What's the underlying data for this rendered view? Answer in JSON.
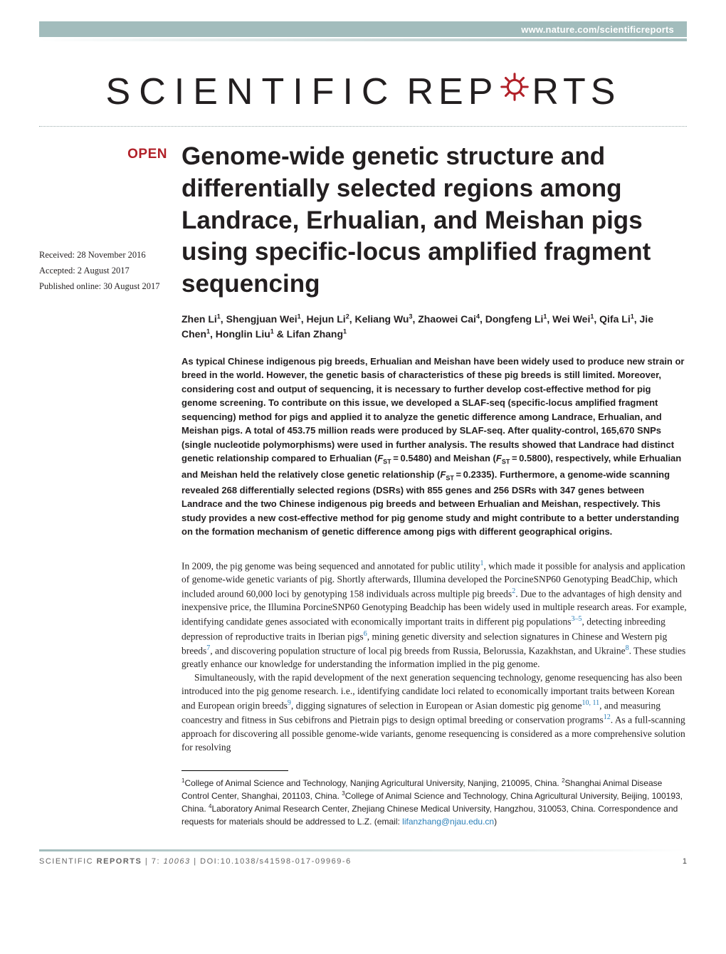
{
  "header": {
    "url": "www.nature.com/scientificreports",
    "journal_name_1": "SCIENTIFIC",
    "journal_name_2_pre": "REP",
    "journal_name_2_post": "RTS",
    "gear_color": "#b12028"
  },
  "badge": {
    "open": "OPEN"
  },
  "dates": {
    "received": "Received: 28 November 2016",
    "accepted": "Accepted: 2 August 2017",
    "published": "Published online: 30 August 2017"
  },
  "article": {
    "title": "Genome-wide genetic structure and differentially selected regions among Landrace, Erhualian, and Meishan pigs using specific-locus amplified fragment sequencing",
    "authors_html": "Zhen Li<sup>1</sup>, Shengjuan Wei<sup>1</sup>, Hejun Li<sup>2</sup>, Keliang Wu<sup>3</sup>, Zhaowei Cai<sup>4</sup>, Dongfeng Li<sup>1</sup>, Wei Wei<sup>1</sup>, Qifa Li<sup>1</sup>, Jie Chen<sup>1</sup>, Honglin Liu<sup>1</sup> & Lifan Zhang<sup>1</sup>",
    "abstract_html": "As typical Chinese indigenous pig breeds, Erhualian and Meishan have been widely used to produce new strain or breed in the world. However, the genetic basis of characteristics of these pig breeds is still limited. Moreover, considering cost and output of sequencing, it is necessary to further develop cost-effective method for pig genome screening. To contribute on this issue, we developed a SLAF-seq (specific-locus amplified fragment sequencing) method for pigs and applied it to analyze the genetic difference among Landrace, Erhualian, and Meishan pigs. A total of 453.75 million reads were produced by SLAF-seq. After quality-control, 165,670 SNPs (single nucleotide polymorphisms) were used in further analysis. The results showed that Landrace had distinct genetic relationship compared to Erhualian (<span class=\"fst\">F</span><sub>ST</sub> = 0.5480) and Meishan (<span class=\"fst\">F</span><sub>ST</sub> = 0.5800), respectively, while Erhualian and Meishan held the relatively close genetic relationship (<span class=\"fst\">F</span><sub>ST</sub> = 0.2335). Furthermore, a genome-wide scanning revealed 268 differentially selected regions (DSRs) with 855 genes and 256 DSRs with 347 genes between Landrace and the two Chinese indigenous pig breeds and between Erhualian and Meishan, respectively. This study provides a new cost-effective method for pig genome study and might contribute to a better understanding on the formation mechanism of genetic difference among pigs with different geographical origins."
  },
  "body": {
    "p1_html": "In 2009, the pig genome was being sequenced and annotated for public utility<span class=\"cite\">1</span>, which made it possible for analysis and application of genome-wide genetic variants of pig. Shortly afterwards, Illumina developed the PorcineSNP60 Genotyping BeadChip, which included around 60,000 loci by genotyping 158 individuals across multiple pig breeds<span class=\"cite\">2</span>. Due to the advantages of high density and inexpensive price, the Illumina PorcineSNP60 Genotyping Beadchip has been widely used in multiple research areas. For example, identifying candidate genes associated with economically important traits in different pig populations<span class=\"cite\">3–5</span>, detecting inbreeding depression of reproductive traits in Iberian pigs<span class=\"cite\">6</span>, mining genetic diversity and selection signatures in Chinese and Western pig breeds<span class=\"cite\">7</span>, and discovering population structure of local pig breeds from Russia, Belorussia, Kazakhstan, and Ukraine<span class=\"cite\">8</span>. These studies greatly enhance our knowledge for understanding the information implied in the pig genome.",
    "p2_html": "Simultaneously, with the rapid development of the next generation sequencing technology, genome resequencing has also been introduced into the pig genome research. i.e., identifying candidate loci related to economically important traits between Korean and European origin breeds<span class=\"cite\">9</span>, digging signatures of selection in European or Asian domestic pig genome<span class=\"cite\">10, 11</span>, and measuring coancestry and fitness in Sus cebifrons and Pietrain pigs to design optimal breeding or conservation programs<span class=\"cite\">12</span>. As a full-scanning approach for discovering all possible genome-wide variants, genome resequencing is considered as a more comprehensive solution for resolving"
  },
  "affiliations_html": "<sup>1</sup>College of Animal Science and Technology, Nanjing Agricultural University, Nanjing, 210095, China. <sup>2</sup>Shanghai Animal Disease Control Center, Shanghai, 201103, China. <sup>3</sup>College of Animal Science and Technology, China Agricultural University, Beijing, 100193, China. <sup>4</sup>Laboratory Animal Research Center, Zhejiang Chinese Medical University, Hangzhou, 310053, China. Correspondence and requests for materials should be addressed to L.Z. (email: <span class=\"email\">lifanzhang@njau.edu.cn</span>)",
  "footer": {
    "left_html": "SCIENTIFIC <span class=\"b\">REPORTS</span> | 7: <i>10063</i>  | DOI:10.1038/s41598-017-09969-6",
    "page": "1"
  },
  "colors": {
    "accent_teal": "#a2bcbc",
    "brand_red": "#b12028",
    "cite_blue": "#2a7fb8",
    "text": "#231f20"
  }
}
